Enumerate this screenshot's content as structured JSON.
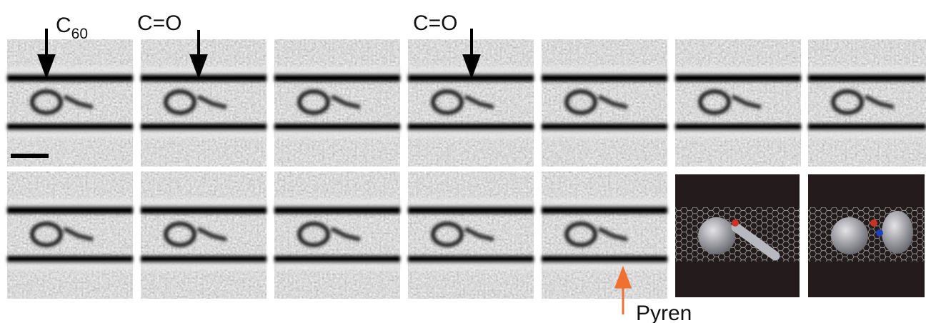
{
  "annotations": {
    "c60": {
      "text": "C",
      "subscript": "60"
    },
    "carbonyl_1": "C=O",
    "carbonyl_2": "C=O",
    "pyrene": "Pyren"
  }
}
